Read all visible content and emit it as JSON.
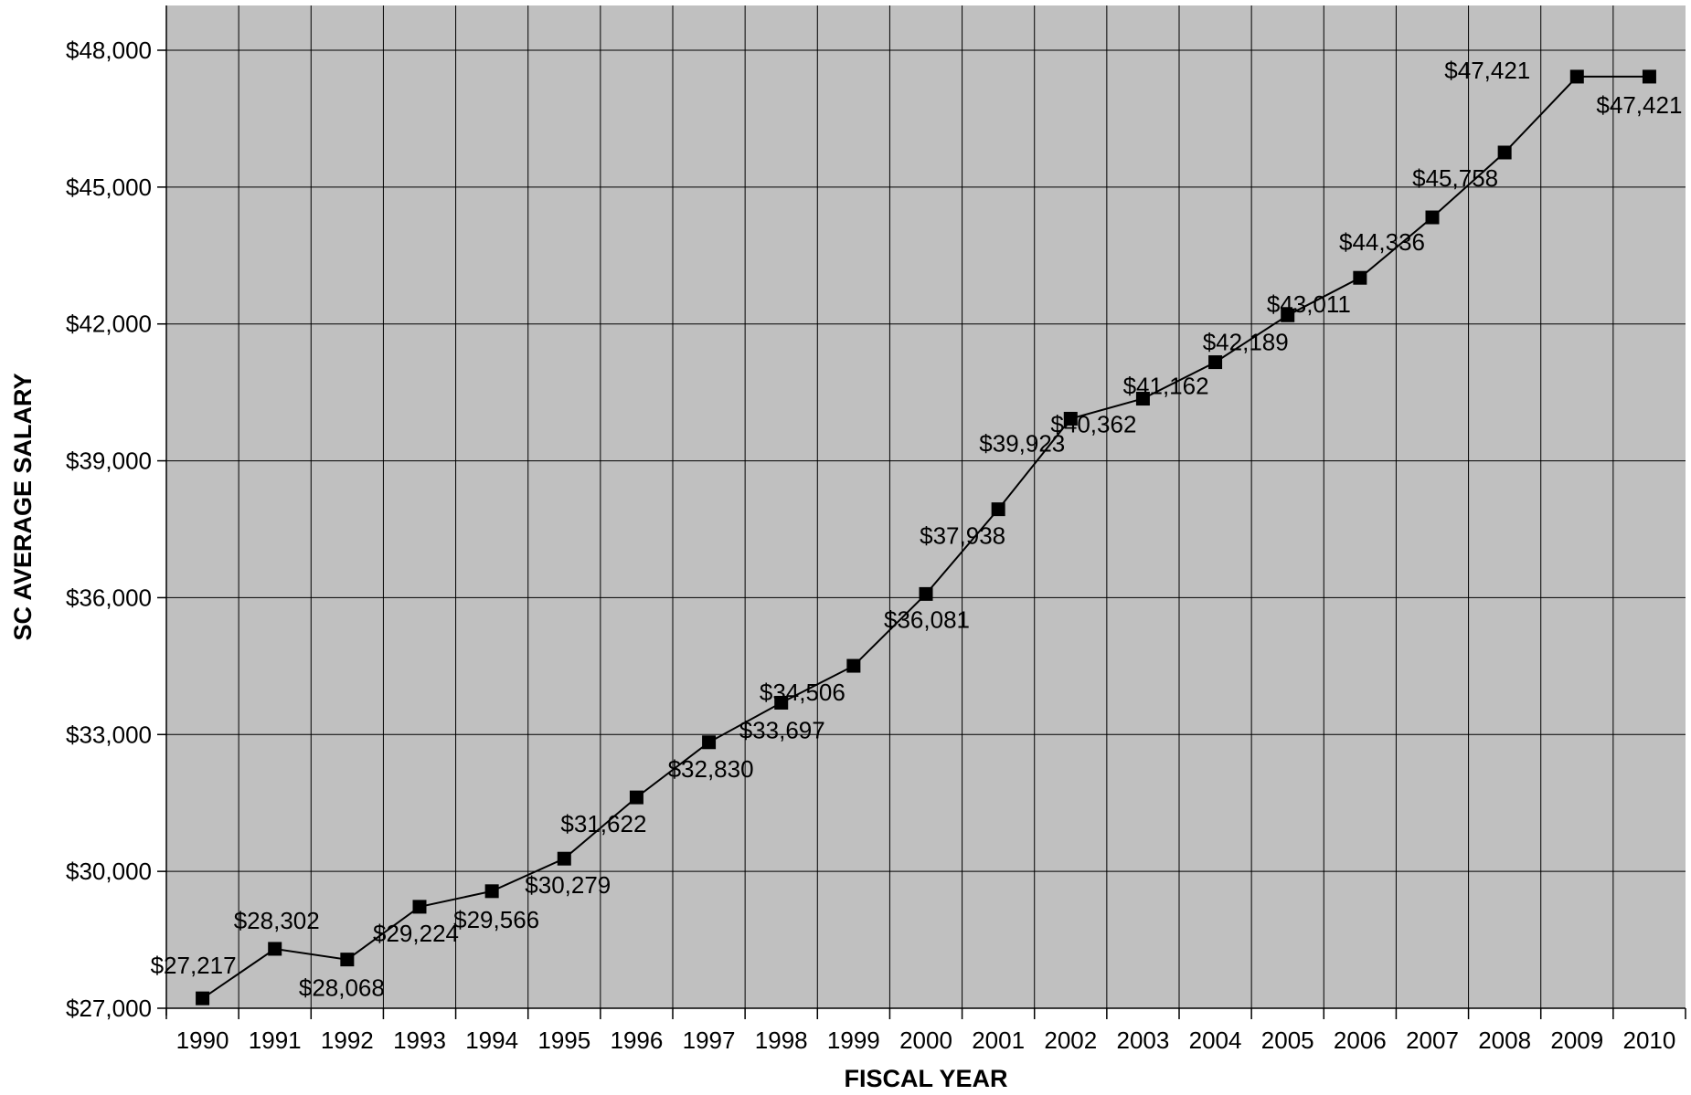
{
  "chart_data": {
    "type": "line",
    "title": "",
    "xlabel": "FISCAL YEAR",
    "ylabel": "SC AVERAGE SALARY",
    "ylim": [
      27000,
      48000
    ],
    "grid": true,
    "legend": "none",
    "colors": {
      "plot_background": "#c0c0c0",
      "gridline": "#000000",
      "line": "#000000",
      "marker": "#000000"
    },
    "x_tick_labels": [
      "1990",
      "1991",
      "1992",
      "1993",
      "1994",
      "1995",
      "1996",
      "1997",
      "1998",
      "1999",
      "2000",
      "2001",
      "2002",
      "2003",
      "2004",
      "2005",
      "2006",
      "2007",
      "2008",
      "2009",
      "2010"
    ],
    "y_tick_labels": [
      "$27,000",
      "$30,000",
      "$33,000",
      "$36,000",
      "$39,000",
      "$42,000",
      "$45,000",
      "$48,000"
    ],
    "y_ticks": [
      27000,
      30000,
      33000,
      36000,
      39000,
      42000,
      45000,
      48000
    ],
    "series": [
      {
        "x": [
          "1990",
          "1991",
          "1992",
          "1993",
          "1994",
          "1995",
          "1996",
          "1997",
          "1998",
          "1999",
          "2000",
          "2001",
          "2002",
          "2003",
          "2004",
          "2005",
          "2006",
          "2007",
          "2008",
          "2009",
          "2010"
        ],
        "values": [
          27217,
          28302,
          28068,
          29224,
          29566,
          30279,
          31622,
          32830,
          33697,
          34506,
          36081,
          37938,
          39923,
          40362,
          41162,
          42189,
          43011,
          44336,
          45758,
          47421,
          47421
        ],
        "data_labels": [
          "$27,217",
          "$28,302",
          "$28,068",
          "$29,224",
          "$29,566",
          "$30,279",
          "$31,622",
          "$32,830",
          "$33,697",
          "$34,506",
          "$36,081",
          "$37,938",
          "$39,923",
          "$40,362",
          "$41,162",
          "$42,189",
          "$43,011",
          "$44,336",
          "$45,758",
          "$47,421",
          "$47,421"
        ]
      }
    ]
  }
}
